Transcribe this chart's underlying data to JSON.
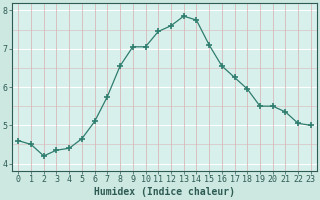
{
  "x": [
    0,
    1,
    2,
    3,
    4,
    5,
    6,
    7,
    8,
    9,
    10,
    11,
    12,
    13,
    14,
    15,
    16,
    17,
    18,
    19,
    20,
    21,
    22,
    23
  ],
  "y": [
    4.6,
    4.5,
    4.2,
    4.35,
    4.4,
    4.65,
    5.1,
    5.75,
    6.55,
    7.05,
    7.05,
    7.45,
    7.6,
    7.85,
    7.75,
    7.1,
    6.55,
    6.25,
    5.95,
    5.5,
    5.5,
    5.35,
    5.05,
    5.0
  ],
  "line_color": "#2e7d6e",
  "marker": "+",
  "marker_size": 4,
  "bg_color": "#cce8e0",
  "plot_bg": "#d8f0ec",
  "grid_color_h": "#ffffff",
  "grid_color_v": "#d8b8b8",
  "xlabel": "Humidex (Indice chaleur)",
  "xlim": [
    -0.5,
    23.5
  ],
  "ylim": [
    3.8,
    8.2
  ],
  "yticks": [
    4,
    5,
    6,
    7,
    8
  ],
  "xtick_labels": [
    "0",
    "1",
    "2",
    "3",
    "4",
    "5",
    "6",
    "7",
    "8",
    "9",
    "10",
    "11",
    "12",
    "13",
    "14",
    "15",
    "16",
    "17",
    "18",
    "19",
    "20",
    "21",
    "22",
    "23"
  ],
  "xlabel_fontsize": 7,
  "tick_fontsize": 6,
  "spine_color": "#2e5c54",
  "tick_color": "#2e5c54",
  "label_color": "#2e5c54"
}
